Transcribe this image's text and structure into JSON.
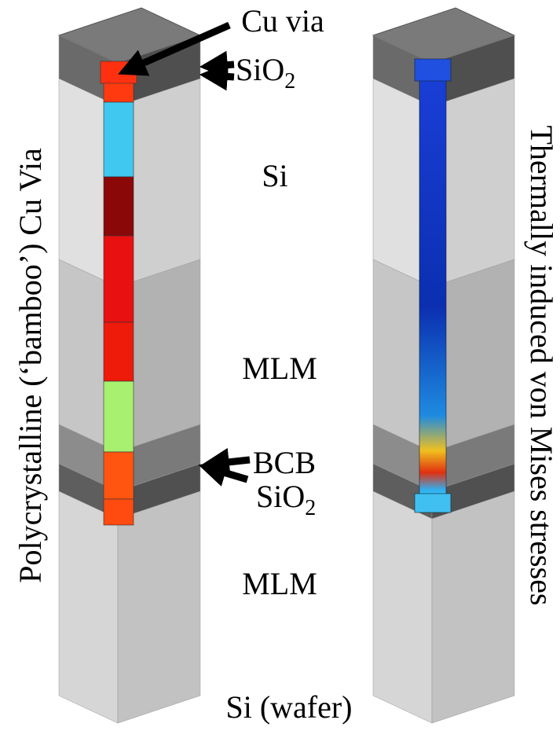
{
  "labels": {
    "cu_via": "Cu via",
    "sio2_top": {
      "text": "SiO",
      "subscript": "2"
    },
    "si": "Si",
    "mlm_upper": "MLM",
    "bcb": "BCB",
    "sio2_bottom": {
      "text": "SiO",
      "subscript": "2"
    },
    "mlm_lower": "MLM",
    "si_wafer": "Si (wafer)"
  },
  "left_caption": "Polycrystalline (‘bamboo’) Cu Via",
  "right_caption": "Thermally induced von Mises stresses"
}
